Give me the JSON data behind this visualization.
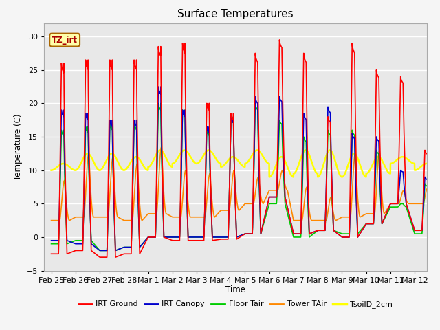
{
  "title": "Surface Temperatures",
  "ylabel": "Temperature (C)",
  "xlabel": "Time",
  "annotation": "TZ_irt",
  "ylim": [
    -5,
    32
  ],
  "yticks": [
    -5,
    0,
    5,
    10,
    15,
    20,
    25,
    30
  ],
  "line_colors": {
    "IRT Ground": "#ff0000",
    "IRT Canopy": "#0000cc",
    "Floor Tair": "#00cc00",
    "Tower TAir": "#ff8800",
    "TsoilD_2cm": "#ffff00"
  },
  "line_widths": {
    "IRT Ground": 1.2,
    "IRT Canopy": 1.2,
    "Floor Tair": 1.2,
    "Tower TAir": 1.2,
    "TsoilD_2cm": 1.8
  },
  "date_labels": [
    "Feb 25",
    "Feb 26",
    "Feb 27",
    "Feb 28",
    "Mar 1",
    "Mar 2",
    "Mar 3",
    "Mar 4",
    "Mar 5",
    "Mar 6",
    "Mar 7",
    "Mar 8",
    "Mar 9",
    "Mar 10",
    "Mar 11",
    "Mar 12"
  ],
  "date_positions": [
    0,
    1,
    2,
    3,
    4,
    5,
    6,
    7,
    8,
    9,
    10,
    11,
    12,
    13,
    14,
    15
  ],
  "n_days": 15.5,
  "daily_peaks_ground": [
    26,
    26.5,
    26.5,
    26.5,
    28.5,
    29,
    20,
    18.5,
    27.5,
    29.5,
    27.5,
    18,
    29,
    25,
    24,
    13
  ],
  "daily_mins_ground": [
    -2.5,
    -2,
    -3,
    -2.5,
    0,
    -0.5,
    -0.5,
    -0.3,
    0.5,
    6,
    0.5,
    1,
    0,
    2,
    5,
    1
  ],
  "daily_peaks_canopy": [
    19,
    18.5,
    17.5,
    17.5,
    22.5,
    19,
    16.5,
    18,
    21,
    21,
    18.5,
    19.5,
    15.5,
    15,
    10,
    9
  ],
  "daily_mins_canopy": [
    -0.5,
    -1,
    -2,
    -1.5,
    0,
    0,
    0,
    0,
    0.5,
    6,
    0.5,
    1,
    0,
    2,
    5,
    1
  ],
  "daily_peaks_floor": [
    16,
    16.5,
    17,
    17,
    20,
    19,
    16,
    18,
    20,
    17.5,
    15,
    16,
    16,
    13,
    5,
    8
  ],
  "daily_mins_floor": [
    -1,
    -0.5,
    -2,
    -1.5,
    0,
    0,
    0,
    0,
    0.5,
    5,
    0,
    1,
    0.5,
    2,
    4.5,
    0.5
  ],
  "daily_peaks_tower": [
    8.5,
    12.5,
    12,
    11,
    13.5,
    10,
    9.5,
    10,
    9,
    10,
    7.5,
    6,
    12.5,
    13,
    7,
    7.5
  ],
  "daily_mins_tower": [
    2.5,
    3,
    3,
    2.5,
    3.5,
    3,
    3,
    4,
    5,
    7,
    2.5,
    2.5,
    3,
    3.5,
    5,
    5
  ],
  "soil_base": [
    11,
    12.5,
    12.5,
    12,
    13,
    13,
    13,
    12,
    13,
    12,
    13,
    13,
    12.5,
    12,
    12,
    11
  ],
  "soil_dip": [
    10,
    10,
    10,
    10,
    10.5,
    11,
    11,
    10.5,
    11,
    9,
    9.5,
    9,
    9,
    9.5,
    11,
    10
  ]
}
